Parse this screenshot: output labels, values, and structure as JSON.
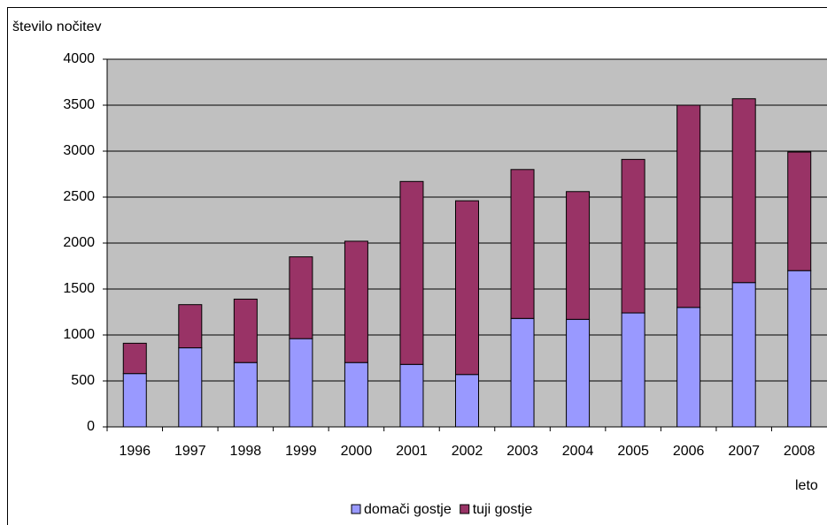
{
  "chart_data": {
    "type": "stacked-bar",
    "y_axis_label": "število nočitev",
    "x_axis_label": "leto",
    "categories": [
      "1996",
      "1997",
      "1998",
      "1999",
      "2000",
      "2001",
      "2002",
      "2003",
      "2004",
      "2005",
      "2006",
      "2007",
      "2008"
    ],
    "series": [
      {
        "name": "domači gostje",
        "color": "#9999ff",
        "values": [
          580,
          860,
          700,
          960,
          700,
          680,
          570,
          1180,
          1170,
          1240,
          1300,
          1570,
          1700
        ]
      },
      {
        "name": "tuji gostje",
        "color": "#993366",
        "values": [
          330,
          470,
          690,
          890,
          1320,
          1990,
          1890,
          1620,
          1390,
          1670,
          2200,
          2000,
          1290
        ]
      }
    ],
    "ylim": [
      0,
      4000
    ],
    "yticks": [
      0,
      500,
      1000,
      1500,
      2000,
      2500,
      3000,
      3500,
      4000
    ],
    "grid": true,
    "plot_background": "#c0c0c0",
    "legend": "bottom"
  }
}
